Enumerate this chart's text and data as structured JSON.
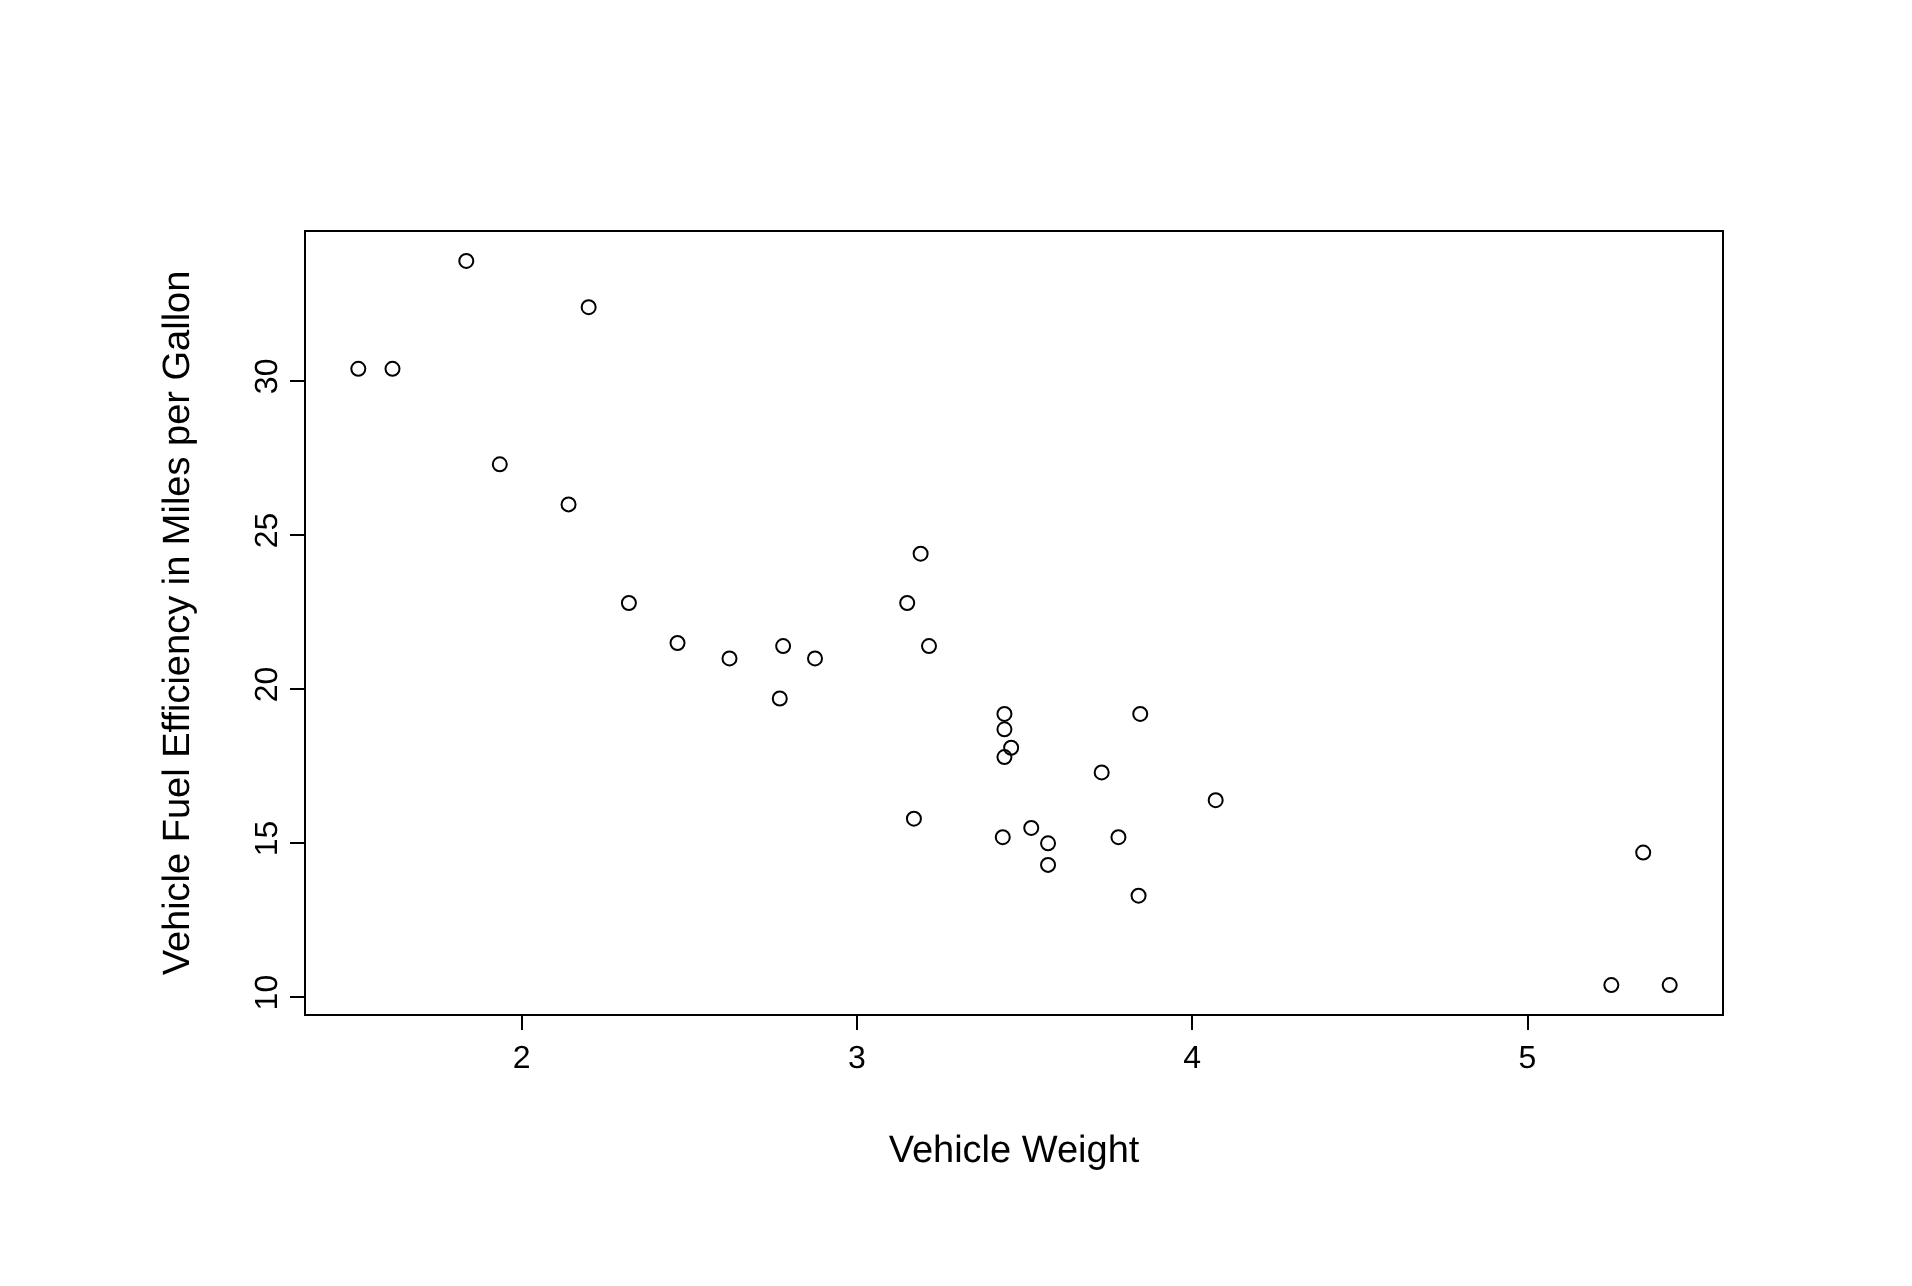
{
  "chart_data": {
    "type": "scatter",
    "xlabel": "Vehicle Weight",
    "ylabel": "Vehicle Fuel Efficiency in Miles per Gallon",
    "x": [
      2.62,
      2.875,
      2.32,
      3.215,
      3.44,
      3.46,
      3.57,
      3.19,
      3.15,
      3.44,
      3.44,
      4.07,
      3.73,
      3.78,
      5.25,
      5.424,
      5.345,
      2.2,
      1.615,
      1.835,
      2.465,
      3.52,
      3.435,
      3.84,
      3.845,
      1.935,
      2.14,
      1.513,
      3.17,
      2.77,
      3.57,
      2.78
    ],
    "values": [
      21.0,
      21.0,
      22.8,
      21.4,
      18.7,
      18.1,
      14.3,
      24.4,
      22.8,
      19.2,
      17.8,
      16.4,
      17.3,
      15.2,
      10.4,
      10.4,
      14.7,
      32.4,
      30.4,
      33.9,
      21.5,
      15.5,
      15.2,
      13.3,
      19.2,
      27.3,
      26.0,
      30.4,
      15.8,
      19.7,
      15.0,
      21.4
    ],
    "color": "#000000",
    "marker": "circle",
    "legend": false,
    "xlim": [
      1.357,
      5.58
    ],
    "ylim": [
      9.46,
      34.84
    ],
    "xticks": [
      2,
      3,
      4,
      5
    ],
    "yticks": [
      10,
      15,
      20,
      25,
      30
    ]
  }
}
